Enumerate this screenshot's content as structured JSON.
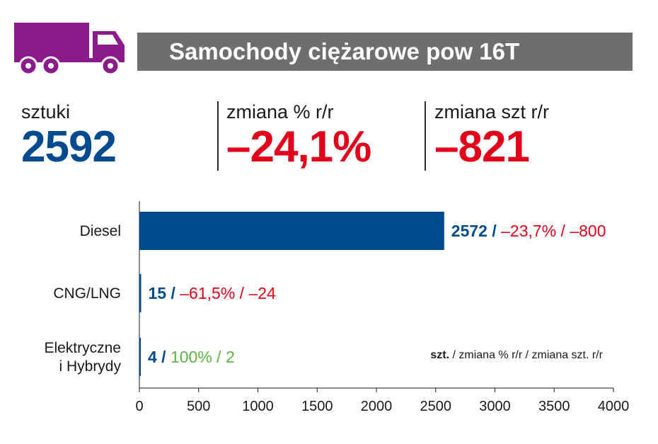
{
  "header": {
    "title": "Samochody ciężarowe pow 16T",
    "icon": "truck-icon",
    "icon_color": "#8b1a8c"
  },
  "kpis": [
    {
      "label": "sztuki",
      "value": "2592",
      "color": "#004a8f"
    },
    {
      "label": "zmiana % r/r",
      "value": "–24,1%",
      "color": "#e2001a"
    },
    {
      "label": "zmiana szt r/r",
      "value": "–821",
      "color": "#e2001a"
    }
  ],
  "colors": {
    "bar": "#004a8f",
    "value": "#004a8f",
    "negative": "#e2001a",
    "positive": "#5db33f",
    "axis": "#1a1a1a"
  },
  "chart_data": {
    "type": "bar",
    "orientation": "horizontal",
    "categories": [
      "Diesel",
      "CNG/LNG",
      "Elektryczne i Hybrydy"
    ],
    "category_lines": [
      [
        "Diesel"
      ],
      [
        "CNG/LNG"
      ],
      [
        "Elektryczne",
        "i Hybrydy"
      ]
    ],
    "values": [
      2572,
      15,
      4
    ],
    "xlim": [
      0,
      4000
    ],
    "xticks": [
      0,
      500,
      1000,
      1500,
      2000,
      2500,
      3000,
      3500,
      4000
    ],
    "grid": false,
    "bar_labels": [
      {
        "value": "2572 /",
        "change_pct": "–23,7% /",
        "change_abs": "–800",
        "sign": "negative"
      },
      {
        "value": "15 /",
        "change_pct": "–61,5% /",
        "change_abs": "–24",
        "sign": "negative"
      },
      {
        "value": "4 /",
        "change_pct": "100% /",
        "change_abs": "2",
        "sign": "positive"
      }
    ],
    "legend_note": {
      "bold": "szt.",
      "rest": " / zmiana % r/r / zmiana szt. r/r"
    }
  }
}
